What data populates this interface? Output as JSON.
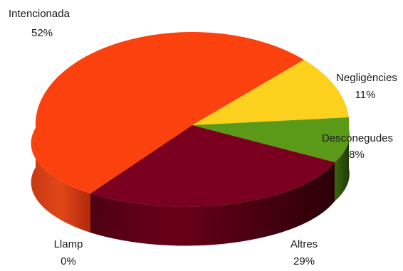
{
  "chart_data": {
    "type": "pie",
    "style": "3d",
    "slices": [
      {
        "label": "Intencionada",
        "value": 52,
        "value_text": "52%",
        "color": "#fb420e"
      },
      {
        "label": "Negligències",
        "value": 11,
        "value_text": "11%",
        "color": "#fcd11e"
      },
      {
        "label": "Desconegudes",
        "value": 8,
        "value_text": "8%",
        "color": "#5a9a18"
      },
      {
        "label": "Altres",
        "value": 29,
        "value_text": "29%",
        "color": "#7b0020"
      },
      {
        "label": "Llamp",
        "value": 0,
        "value_text": "0%",
        "color": "#444444"
      }
    ],
    "legend": "none",
    "data_labels": "category and percentage outside slices"
  }
}
